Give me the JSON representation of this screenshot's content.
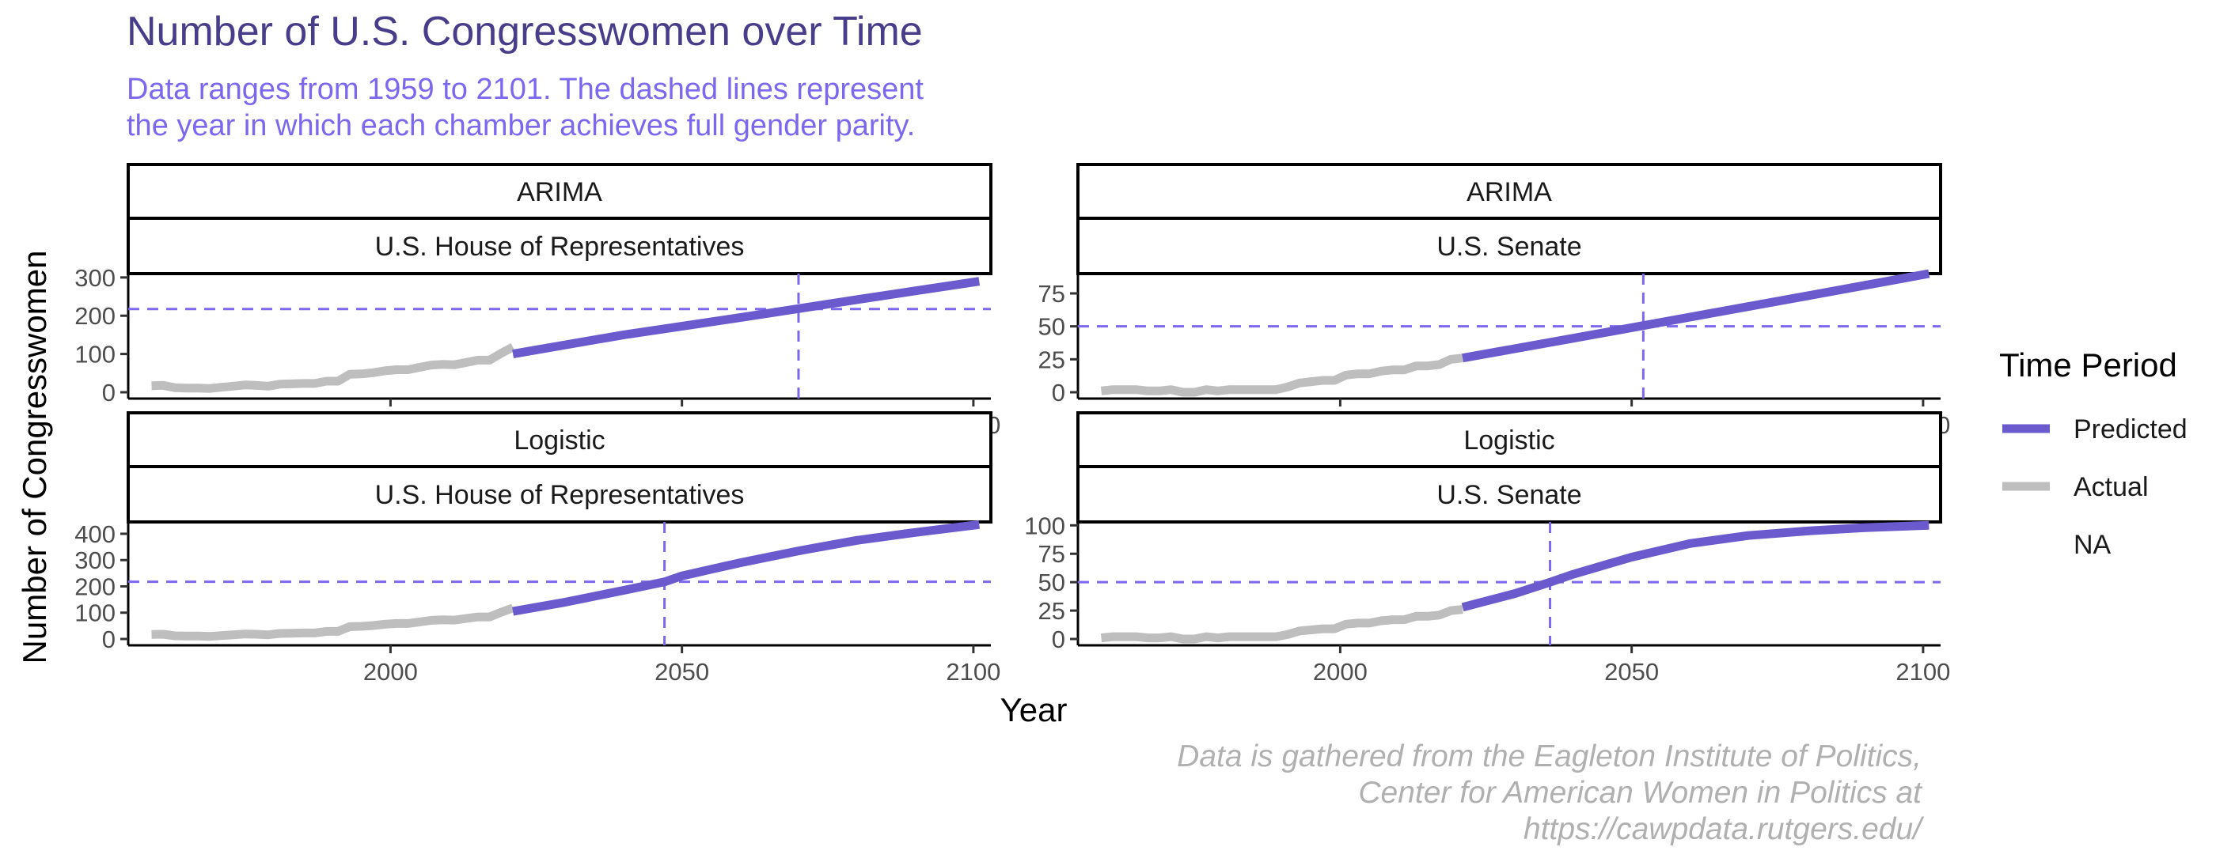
{
  "title": "Number of U.S. Congresswomen over Time",
  "subtitle_lines": [
    "Data ranges from 1959 to 2101. The dashed lines represent",
    "the year in which each chamber achieves full gender parity."
  ],
  "caption_lines": [
    "Data is gathered from the Eagleton Institute of Politics,",
    "Center for American Women in Politics at",
    "https://cawpdata.rutgers.edu/"
  ],
  "colors": {
    "predicted": "#6a5acd",
    "actual": "#bebebe",
    "parity_line": "#7b68ee",
    "title": "#483d8b",
    "subtitle": "#7b68ee",
    "caption": "#b0b0b0"
  },
  "chart_data": {
    "type": "line",
    "xlabel": "Year",
    "ylabel": "Number of Congresswomen",
    "xlim": [
      1955,
      2103
    ],
    "x_ticks": [
      2000,
      2050,
      2100
    ],
    "legend": {
      "title": "Time Period",
      "placement": "right",
      "entries": [
        "Predicted",
        "Actual",
        "NA"
      ]
    },
    "panels": [
      {
        "model": "ARIMA",
        "chamber": "U.S. House of Representatives",
        "ylim": [
          0,
          310
        ],
        "y_ticks": [
          0,
          100,
          200,
          300
        ],
        "parity_y": 217.5,
        "parity_year": 2070,
        "actual": {
          "x": [
            1959,
            1961,
            1963,
            1965,
            1967,
            1969,
            1971,
            1973,
            1975,
            1977,
            1979,
            1981,
            1983,
            1985,
            1987,
            1989,
            1991,
            1993,
            1995,
            1997,
            1999,
            2001,
            2003,
            2005,
            2007,
            2009,
            2011,
            2013,
            2015,
            2017,
            2019,
            2021
          ],
          "y": [
            17,
            18,
            12,
            11,
            11,
            10,
            13,
            16,
            19,
            18,
            16,
            21,
            22,
            23,
            23,
            29,
            29,
            47,
            48,
            51,
            56,
            59,
            59,
            65,
            71,
            73,
            72,
            78,
            84,
            84,
            102,
            118
          ]
        },
        "predicted": {
          "x": [
            2021,
            2040,
            2060,
            2080,
            2101
          ],
          "y": [
            100,
            150,
            195,
            242,
            290
          ]
        }
      },
      {
        "model": "ARIMA",
        "chamber": "U.S. Senate",
        "ylim": [
          0,
          90
        ],
        "y_ticks": [
          0,
          25,
          50,
          75
        ],
        "parity_y": 50,
        "parity_year": 2052,
        "actual": {
          "x": [
            1959,
            1961,
            1963,
            1965,
            1967,
            1969,
            1971,
            1973,
            1975,
            1977,
            1979,
            1981,
            1983,
            1985,
            1987,
            1989,
            1991,
            1993,
            1995,
            1997,
            1999,
            2001,
            2003,
            2005,
            2007,
            2009,
            2011,
            2013,
            2015,
            2017,
            2019,
            2021
          ],
          "y": [
            1,
            2,
            2,
            2,
            1,
            1,
            2,
            0,
            0,
            2,
            1,
            2,
            2,
            2,
            2,
            2,
            4,
            7,
            8,
            9,
            9,
            13,
            14,
            14,
            16,
            17,
            17,
            20,
            20,
            21,
            25,
            26
          ]
        },
        "predicted": {
          "x": [
            2021,
            2040,
            2060,
            2080,
            2101
          ],
          "y": [
            26,
            41,
            57,
            73,
            90
          ]
        }
      },
      {
        "model": "Logistic",
        "chamber": "U.S. House of Representatives",
        "ylim": [
          0,
          445
        ],
        "y_ticks": [
          0,
          100,
          200,
          300,
          400
        ],
        "parity_y": 217.5,
        "parity_year": 2047,
        "actual": {
          "x": [
            1959,
            1961,
            1963,
            1965,
            1967,
            1969,
            1971,
            1973,
            1975,
            1977,
            1979,
            1981,
            1983,
            1985,
            1987,
            1989,
            1991,
            1993,
            1995,
            1997,
            1999,
            2001,
            2003,
            2005,
            2007,
            2009,
            2011,
            2013,
            2015,
            2017,
            2019,
            2021
          ],
          "y": [
            17,
            18,
            12,
            11,
            11,
            10,
            13,
            16,
            19,
            18,
            16,
            21,
            22,
            23,
            23,
            29,
            29,
            47,
            48,
            51,
            56,
            59,
            59,
            65,
            71,
            73,
            72,
            78,
            84,
            84,
            102,
            118
          ]
        },
        "predicted": {
          "x": [
            2021,
            2030,
            2040,
            2047,
            2050,
            2060,
            2070,
            2080,
            2090,
            2101
          ],
          "y": [
            105,
            140,
            185,
            217,
            240,
            290,
            335,
            375,
            405,
            435
          ]
        }
      },
      {
        "model": "Logistic",
        "chamber": "U.S. Senate",
        "ylim": [
          0,
          103
        ],
        "y_ticks": [
          0,
          25,
          50,
          75,
          100
        ],
        "parity_y": 50,
        "parity_year": 2036,
        "actual": {
          "x": [
            1959,
            1961,
            1963,
            1965,
            1967,
            1969,
            1971,
            1973,
            1975,
            1977,
            1979,
            1981,
            1983,
            1985,
            1987,
            1989,
            1991,
            1993,
            1995,
            1997,
            1999,
            2001,
            2003,
            2005,
            2007,
            2009,
            2011,
            2013,
            2015,
            2017,
            2019,
            2021
          ],
          "y": [
            1,
            2,
            2,
            2,
            1,
            1,
            2,
            0,
            0,
            2,
            1,
            2,
            2,
            2,
            2,
            2,
            4,
            7,
            8,
            9,
            9,
            13,
            14,
            14,
            16,
            17,
            17,
            20,
            20,
            21,
            25,
            26
          ]
        },
        "predicted": {
          "x": [
            2021,
            2030,
            2036,
            2040,
            2050,
            2060,
            2070,
            2080,
            2090,
            2101
          ],
          "y": [
            28,
            40,
            50,
            57,
            72,
            84,
            91,
            95,
            98,
            100
          ]
        }
      }
    ]
  }
}
